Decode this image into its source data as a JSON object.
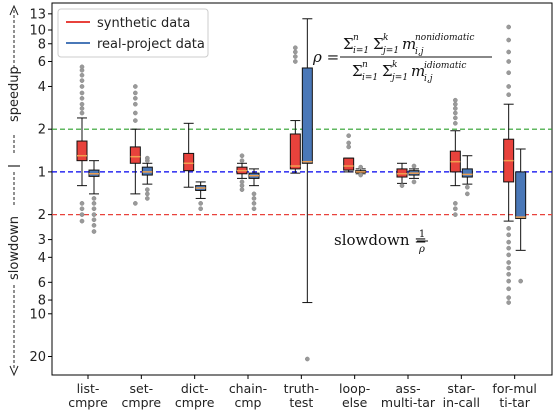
{
  "chart_data": {
    "type": "box",
    "title": "",
    "ylabel_top": "speedup",
    "ylabel_bottom": "slowdown",
    "y_scale": "log (slowdown shown as reciprocal)",
    "yticks_speedup": [
      "13",
      "10",
      "8",
      "6",
      "4",
      "2",
      "1"
    ],
    "yticks_slowdown": [
      "2",
      "3",
      "4",
      "6",
      "8",
      "10",
      "20"
    ],
    "reference_lines": [
      {
        "value": 2,
        "color": "#2ca02c",
        "style": "dashed"
      },
      {
        "value": 1,
        "color": "#0000ee",
        "style": "dashed"
      },
      {
        "value": 0.5,
        "color": "#e8423c",
        "style": "dashed"
      }
    ],
    "categories": [
      "list-\ncmpre",
      "set-\ncmpre",
      "dict-\ncmpre",
      "chain-\ncmp",
      "truth-\ntest",
      "loop-\nelse",
      "ass-\nmulti-tar",
      "star-\nin-call",
      "for-mul\nti-tar"
    ],
    "series": [
      {
        "name": "synthetic data",
        "color": "#e8423c",
        "boxes": [
          {
            "whislo": 0.8,
            "q1": 1.2,
            "med": 1.3,
            "q3": 1.65,
            "whishi": 2.4,
            "fliers": [
              0.45,
              0.5,
              0.55,
              0.6,
              2.6,
              2.8,
              3.0,
              3.3,
              3.6,
              4.0,
              4.4,
              4.8,
              5.2,
              5.5
            ]
          },
          {
            "whislo": 0.7,
            "q1": 1.15,
            "med": 1.28,
            "q3": 1.5,
            "whishi": 2.0,
            "fliers": [
              0.6,
              2.3,
              2.6,
              3.0,
              3.3,
              3.6,
              4.0
            ]
          },
          {
            "whislo": 0.78,
            "q1": 1.02,
            "med": 1.15,
            "q3": 1.35,
            "whishi": 2.2,
            "fliers": []
          },
          {
            "whislo": 0.9,
            "q1": 0.97,
            "med": 1.02,
            "q3": 1.08,
            "whishi": 1.15,
            "fliers": [
              0.75,
              0.8,
              0.85,
              1.2,
              1.3
            ]
          },
          {
            "whislo": 0.98,
            "q1": 1.05,
            "med": 1.1,
            "q3": 1.85,
            "whishi": 2.3,
            "fliers": [
              6.0,
              6.5,
              7.0,
              7.5
            ]
          },
          {
            "whislo": 1.0,
            "q1": 1.03,
            "med": 1.1,
            "q3": 1.25,
            "whishi": 1.25,
            "fliers": [
              1.5,
              1.6,
              1.8
            ]
          },
          {
            "whislo": 0.83,
            "q1": 0.92,
            "med": 0.97,
            "q3": 1.05,
            "whishi": 1.15,
            "fliers": [
              0.8
            ]
          },
          {
            "whislo": 0.8,
            "q1": 1.0,
            "med": 1.18,
            "q3": 1.4,
            "whishi": 1.95,
            "fliers": [
              0.5,
              0.55,
              0.6,
              2.2,
              2.4,
              2.6,
              2.8,
              3.0,
              3.2
            ]
          },
          {
            "whislo": 0.45,
            "q1": 0.85,
            "med": 1.2,
            "q3": 1.7,
            "whishi": 3.0,
            "fliers": [
              0.12,
              0.13,
              0.15,
              0.17,
              0.19,
              0.21,
              0.23,
              0.26,
              0.29,
              0.32,
              0.36,
              0.4,
              3.5,
              4.0,
              5.0,
              6.0,
              7.0,
              8.5,
              10.5
            ]
          }
        ]
      },
      {
        "name": "real-project data",
        "color": "#4a78b8",
        "boxes": [
          {
            "whislo": 0.7,
            "q1": 0.93,
            "med": 0.97,
            "q3": 1.03,
            "whishi": 1.2,
            "fliers": [
              0.38,
              0.42,
              0.46,
              0.5,
              0.55,
              0.6,
              0.65
            ]
          },
          {
            "whislo": 0.82,
            "q1": 0.95,
            "med": 1.0,
            "q3": 1.08,
            "whishi": 1.15,
            "fliers": [
              0.65,
              0.7,
              0.75,
              1.2,
              1.25
            ]
          },
          {
            "whislo": 0.65,
            "q1": 0.74,
            "med": 0.77,
            "q3": 0.8,
            "whishi": 0.85,
            "fliers": [
              0.55,
              0.6
            ]
          },
          {
            "whislo": 0.8,
            "q1": 0.9,
            "med": 0.94,
            "q3": 0.98,
            "whishi": 1.05,
            "fliers": [
              0.55,
              0.6,
              0.65,
              0.7
            ]
          },
          {
            "whislo": 0.12,
            "q1": 1.15,
            "med": 1.18,
            "q3": 5.4,
            "whishi": 12.0,
            "fliers": [
              0.048
            ]
          },
          {
            "whislo": 0.97,
            "q1": 0.99,
            "med": 1.0,
            "q3": 1.02,
            "whishi": 1.05,
            "fliers": [
              0.95,
              1.08
            ]
          },
          {
            "whislo": 0.9,
            "q1": 0.95,
            "med": 0.98,
            "q3": 1.02,
            "whishi": 1.05,
            "fliers": [
              0.85,
              1.1
            ]
          },
          {
            "whislo": 0.82,
            "q1": 0.92,
            "med": 0.96,
            "q3": 1.05,
            "whishi": 1.3,
            "fliers": [
              0.7,
              0.78
            ]
          },
          {
            "whislo": 0.28,
            "q1": 0.47,
            "med": 0.48,
            "q3": 1.0,
            "whishi": 1.45,
            "fliers": [
              0.17
            ]
          }
        ]
      }
    ],
    "legend": {
      "placement": "top-left"
    },
    "annotations": {
      "rho_lhs": "ρ =",
      "rho_numer": "Σ",
      "rho_numer_rest": "m",
      "rho_numer_sup": "nonidiomatic",
      "rho_sub": "i,j",
      "rho_denom_sup": "idiomatic",
      "sum_outer_sub": "i=1",
      "sum_outer_sup": "n",
      "sum_inner_sub": "j=1",
      "sum_inner_sup": "k",
      "slowdown_lhs": "slowdown =",
      "slowdown_num": "1",
      "slowdown_den": "ρ"
    }
  }
}
